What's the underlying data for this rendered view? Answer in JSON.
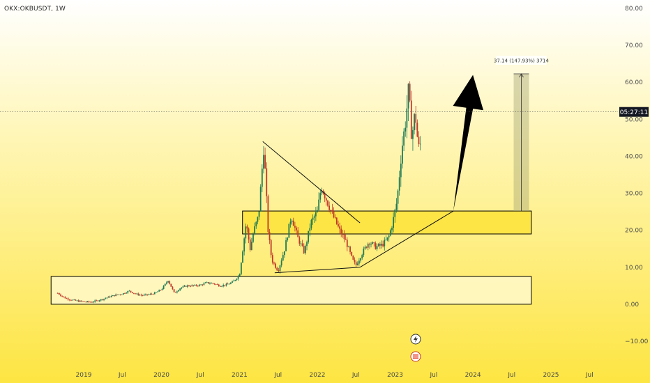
{
  "header": {
    "symbol_title": "OKX:OKBUSDT, 1W"
  },
  "price_label": {
    "value": 52.0,
    "text": "05:27:11",
    "color": "#131722"
  },
  "measure_label": {
    "text": "37.14 (147.93%) 3714"
  },
  "colors": {
    "up": "#1f7a55",
    "down": "#c0392b",
    "zone_fill": "#fde442",
    "lower_zone_fill": "#fffad0",
    "arrow": "#000000",
    "background_top": "#ffffff",
    "background_bottom": "#fde542"
  },
  "icons": [
    "flash-icon",
    "flag-icon"
  ],
  "chart_data": {
    "type": "candlestick",
    "title": "OKX:OKBUSDT, 1W",
    "ylim": [
      -14,
      83
    ],
    "y_ticks": [
      80,
      70,
      60,
      50,
      40,
      30,
      20,
      10,
      0,
      -10
    ],
    "y_tick_labels": [
      "80.00",
      "70.00",
      "60.00",
      "50.00",
      "40.00",
      "30.00",
      "20.00",
      "10.00",
      "0.00",
      "−10.00"
    ],
    "x_ticks": [
      {
        "label": "2019",
        "date": "2019-01-01"
      },
      {
        "label": "Jul",
        "date": "2019-07-01"
      },
      {
        "label": "2020",
        "date": "2020-01-01"
      },
      {
        "label": "Jul",
        "date": "2020-07-01"
      },
      {
        "label": "2021",
        "date": "2021-01-01"
      },
      {
        "label": "Jul",
        "date": "2021-07-01"
      },
      {
        "label": "2022",
        "date": "2022-01-01"
      },
      {
        "label": "Jul",
        "date": "2022-07-01"
      },
      {
        "label": "2023",
        "date": "2023-01-01"
      },
      {
        "label": "Jul",
        "date": "2023-07-01"
      },
      {
        "label": "2024",
        "date": "2024-01-01"
      },
      {
        "label": "Jul",
        "date": "2024-07-01"
      },
      {
        "label": "2025",
        "date": "2025-01-01"
      },
      {
        "label": "Jul",
        "date": "2025-07-01"
      }
    ],
    "series_path": [
      [
        "2018-09-01",
        3.0
      ],
      [
        "2018-10-01",
        1.8
      ],
      [
        "2018-11-01",
        1.2
      ],
      [
        "2018-12-01",
        0.9
      ],
      [
        "2019-01-01",
        0.7
      ],
      [
        "2019-02-01",
        0.6
      ],
      [
        "2019-03-01",
        0.9
      ],
      [
        "2019-04-01",
        1.4
      ],
      [
        "2019-05-01",
        2.0
      ],
      [
        "2019-06-01",
        2.5
      ],
      [
        "2019-07-01",
        2.8
      ],
      [
        "2019-08-01",
        3.6
      ],
      [
        "2019-09-01",
        2.8
      ],
      [
        "2019-10-01",
        2.4
      ],
      [
        "2019-11-01",
        2.6
      ],
      [
        "2019-12-01",
        3.0
      ],
      [
        "2020-01-01",
        4.0
      ],
      [
        "2020-02-01",
        6.5
      ],
      [
        "2020-03-01",
        3.0
      ],
      [
        "2020-04-01",
        4.5
      ],
      [
        "2020-05-01",
        5.0
      ],
      [
        "2020-06-01",
        5.0
      ],
      [
        "2020-07-01",
        5.2
      ],
      [
        "2020-08-01",
        5.8
      ],
      [
        "2020-09-01",
        5.6
      ],
      [
        "2020-10-01",
        5.0
      ],
      [
        "2020-11-01",
        5.3
      ],
      [
        "2020-12-01",
        6.0
      ],
      [
        "2021-01-01",
        8.0
      ],
      [
        "2021-02-01",
        22.0
      ],
      [
        "2021-02-20",
        15.0
      ],
      [
        "2021-03-10",
        20.0
      ],
      [
        "2021-04-01",
        24.0
      ],
      [
        "2021-04-25",
        43.0
      ],
      [
        "2021-05-15",
        20.0
      ],
      [
        "2021-06-01",
        12.0
      ],
      [
        "2021-07-01",
        9.0
      ],
      [
        "2021-08-01",
        15.0
      ],
      [
        "2021-09-01",
        24.0
      ],
      [
        "2021-10-01",
        18.0
      ],
      [
        "2021-11-01",
        14.0
      ],
      [
        "2021-12-01",
        22.0
      ],
      [
        "2022-01-01",
        25.0
      ],
      [
        "2022-01-20",
        32.0
      ],
      [
        "2022-02-15",
        28.0
      ],
      [
        "2022-03-15",
        24.0
      ],
      [
        "2022-04-15",
        20.0
      ],
      [
        "2022-05-15",
        17.0
      ],
      [
        "2022-06-15",
        12.0
      ],
      [
        "2022-07-01",
        10.5
      ],
      [
        "2022-08-01",
        14.0
      ],
      [
        "2022-09-01",
        17.0
      ],
      [
        "2022-10-01",
        15.5
      ],
      [
        "2022-11-01",
        16.0
      ],
      [
        "2022-12-01",
        18.0
      ],
      [
        "2022-12-20",
        22.0
      ],
      [
        "2023-01-10",
        28.0
      ],
      [
        "2023-02-01",
        42.0
      ],
      [
        "2023-02-20",
        50.0
      ],
      [
        "2023-03-05",
        58.0
      ],
      [
        "2023-03-20",
        45.0
      ],
      [
        "2023-04-05",
        52.0
      ],
      [
        "2023-04-20",
        42.0
      ],
      [
        "2023-05-05",
        44.0
      ]
    ],
    "zones": [
      {
        "name": "accumulation-zone",
        "x0": "2018-08-01",
        "x1": "2024-10-01",
        "y0": 0.0,
        "y1": 7.5
      },
      {
        "name": "breakout-zone",
        "x0": "2021-01-15",
        "x1": "2024-10-01",
        "y0": 19.0,
        "y1": 25.2
      }
    ],
    "lines": [
      {
        "name": "triangle-upper",
        "from": [
          "2021-04-20",
          44.0
        ],
        "to": [
          "2022-07-20",
          22.0
        ]
      },
      {
        "name": "triangle-lower",
        "from": [
          "2021-06-15",
          8.5
        ],
        "to": [
          "2022-07-20",
          10.0
        ]
      },
      {
        "name": "ascending-support",
        "from": [
          "2022-07-20",
          10.0
        ],
        "to": [
          "2023-10-01",
          25.2
        ]
      }
    ],
    "projection_arrow": {
      "from": [
        "2023-10-01",
        25.2
      ],
      "to": [
        "2024-01-01",
        62.0
      ]
    },
    "measure": {
      "x": "2024-08-15",
      "from": 25.2,
      "to": 62.3
    },
    "current_price": 52.0
  }
}
